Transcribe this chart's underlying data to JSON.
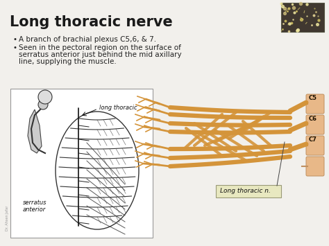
{
  "title": "Long thoracic nerve",
  "bullet1": "A branch of brachial plexus C5,6, & 7.",
  "bullet2_line1": "Seen in the pectoral region on the surface of",
  "bullet2_line2": "serratus anterior just behind the mid axillary",
  "bullet2_line3": "line, supplying the muscle.",
  "label_long_thoracic": "long thoracic",
  "label_serratus": "serratus\nanterior",
  "label_long_thoracic_n": "Long thoracic n.",
  "label_c5": "C5",
  "label_c6": "C6",
  "label_c7": "C7",
  "slide_bg": "#f2f0ec",
  "title_color": "#1a1a1a",
  "text_color": "#222222",
  "nerve_color": "#d4943a",
  "annotation_bg": "#e8e8c0",
  "title_fontsize": 15,
  "body_fontsize": 7.5
}
